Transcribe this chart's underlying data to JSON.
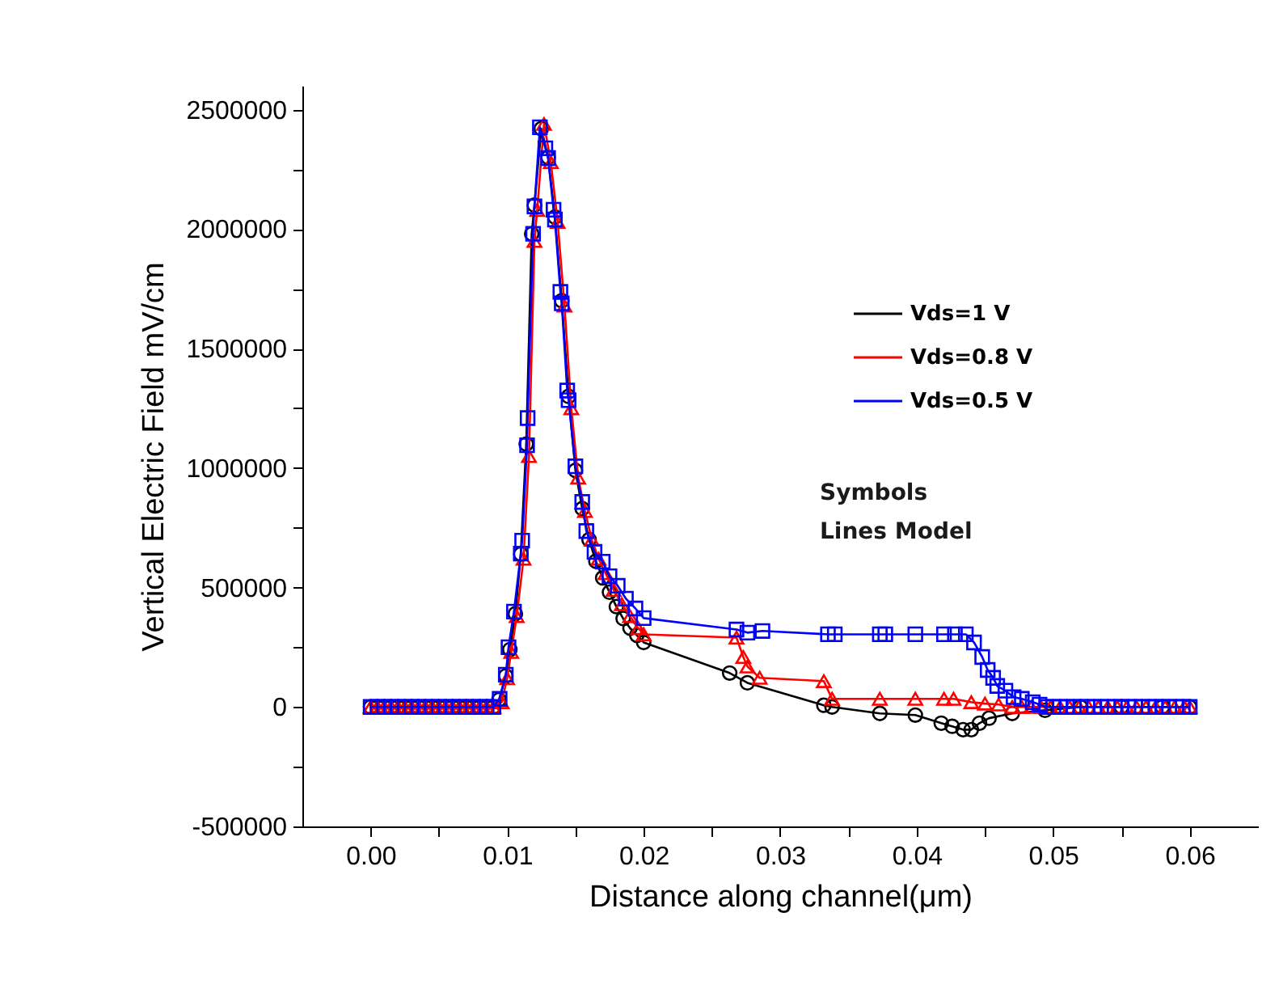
{
  "chart_data": {
    "type": "line",
    "xlabel": "Distance along channel(μm)",
    "ylabel": "Vertical Electric Field mV/cm",
    "xlim": [
      -0.005,
      0.065
    ],
    "xticks": [
      {
        "value": 0,
        "label": "0.00"
      },
      {
        "value": 0.005,
        "label": null
      },
      {
        "value": 0.01,
        "label": "0.01"
      },
      {
        "value": 0.015,
        "label": null
      },
      {
        "value": 0.02,
        "label": "0.02"
      },
      {
        "value": 0.025,
        "label": null
      },
      {
        "value": 0.03,
        "label": "0.03"
      },
      {
        "value": 0.035,
        "label": null
      },
      {
        "value": 0.04,
        "label": "0.04"
      },
      {
        "value": 0.045,
        "label": null
      },
      {
        "value": 0.05,
        "label": "0.05"
      },
      {
        "value": 0.055,
        "label": null
      },
      {
        "value": 0.06,
        "label": "0.06"
      }
    ],
    "ylim": [
      -500000,
      2600000
    ],
    "yticks": [
      -500000,
      {
        "value": -250000,
        "label": null
      },
      0,
      {
        "value": 250000,
        "label": null
      },
      500000,
      {
        "value": 750000,
        "label": null
      },
      1000000,
      {
        "value": 1250000,
        "label": null
      },
      1500000,
      {
        "value": 1750000,
        "label": null
      },
      2000000,
      {
        "value": 2250000,
        "label": null
      },
      2500000
    ],
    "grid": false,
    "legend": "top right",
    "line_style": "solid",
    "annotations": [
      "Symbols",
      "Lines Model"
    ],
    "series": [
      {
        "name": "Vds=1 V",
        "color": "#000000",
        "marker": "circle",
        "x": [
          0,
          0.0005,
          0.001,
          0.0015,
          0.002,
          0.0025,
          0.003,
          0.0035,
          0.004,
          0.0045,
          0.005,
          0.0055,
          0.006,
          0.0065,
          0.007,
          0.0075,
          0.008,
          0.0085,
          0.009,
          0.0094,
          0.0099,
          0.0102,
          0.0106,
          0.011,
          0.0114,
          0.0118,
          0.012,
          0.0125,
          0.013,
          0.0135,
          0.014,
          0.0145,
          0.015,
          0.0155,
          0.016,
          0.0165,
          0.017,
          0.0175,
          0.018,
          0.0185,
          0.019,
          0.0195,
          0.02,
          0.0263,
          0.0276,
          0.0332,
          0.0338,
          0.0373,
          0.0399,
          0.0418,
          0.0426,
          0.0434,
          0.044,
          0.0446,
          0.0453,
          0.047,
          0.0494,
          0.052,
          0.055,
          0.058,
          0.06
        ],
        "values": [
          0,
          0,
          0,
          0,
          0,
          0,
          0,
          0,
          0,
          0,
          0,
          0,
          0,
          0,
          0,
          0,
          0,
          0,
          0,
          30000,
          130000,
          240000,
          390000,
          640000,
          1100000,
          1980000,
          2100000,
          2420000,
          2300000,
          2050000,
          1700000,
          1300000,
          990000,
          830000,
          700000,
          610000,
          540000,
          480000,
          420000,
          370000,
          330000,
          300000,
          270000,
          142000,
          101000,
          7000,
          0,
          -27000,
          -34000,
          -68000,
          -81000,
          -95000,
          -95000,
          -68000,
          -47000,
          -27000,
          -14000,
          0,
          0,
          0,
          0
        ]
      },
      {
        "name": "Vds=0.8 V",
        "color": "#ff0000",
        "marker": "triangle",
        "x": [
          0,
          0.0005,
          0.001,
          0.0015,
          0.002,
          0.0025,
          0.003,
          0.0035,
          0.004,
          0.0045,
          0.005,
          0.0055,
          0.006,
          0.0065,
          0.007,
          0.0075,
          0.008,
          0.0085,
          0.009,
          0.0096,
          0.01,
          0.0103,
          0.0107,
          0.0112,
          0.0116,
          0.012,
          0.0122,
          0.0127,
          0.0132,
          0.0137,
          0.0142,
          0.0147,
          0.0152,
          0.0157,
          0.0162,
          0.0167,
          0.0172,
          0.0178,
          0.0184,
          0.019,
          0.0196,
          0.02,
          0.0268,
          0.0273,
          0.0276,
          0.0285,
          0.0332,
          0.0338,
          0.0373,
          0.0399,
          0.042,
          0.0427,
          0.044,
          0.045,
          0.046,
          0.047,
          0.0477,
          0.0484,
          0.0491,
          0.0498,
          0.0505,
          0.0512,
          0.0519,
          0.0526,
          0.0533,
          0.054,
          0.0547,
          0.0554,
          0.0561,
          0.0568,
          0.0575,
          0.0582,
          0.0589,
          0.0596,
          0.06
        ],
        "values": [
          0,
          0,
          0,
          0,
          0,
          0,
          0,
          0,
          0,
          0,
          0,
          0,
          0,
          0,
          0,
          0,
          0,
          0,
          0,
          20000,
          120000,
          230000,
          380000,
          620000,
          1050000,
          1950000,
          2080000,
          2440000,
          2280000,
          2030000,
          1680000,
          1250000,
          960000,
          820000,
          700000,
          620000,
          560000,
          490000,
          430000,
          380000,
          330000,
          304000,
          290000,
          209000,
          169000,
          122000,
          108000,
          34000,
          34000,
          34000,
          34000,
          34000,
          20000,
          14000,
          10000,
          0,
          0,
          0,
          0,
          0,
          0,
          0,
          0,
          0,
          0,
          0,
          0,
          0,
          0,
          0,
          0,
          0,
          0,
          0,
          0
        ]
      },
      {
        "name": "Vds=0.5 V",
        "color": "#0000ff",
        "marker": "square",
        "x": [
          0,
          0.0005,
          0.001,
          0.0015,
          0.002,
          0.0025,
          0.003,
          0.0035,
          0.004,
          0.0045,
          0.005,
          0.0055,
          0.006,
          0.0065,
          0.007,
          0.0075,
          0.008,
          0.0085,
          0.009,
          0.00945,
          0.0099,
          0.0101,
          0.0105,
          0.011,
          0.0111,
          0.01146,
          0.0115,
          0.0119,
          0.012,
          0.0124,
          0.0128,
          0.013,
          0.0134,
          0.0135,
          0.0139,
          0.014,
          0.0144,
          0.0145,
          0.015,
          0.0155,
          0.0158,
          0.0164,
          0.017,
          0.0175,
          0.0181,
          0.0187,
          0.0194,
          0.02,
          0.0268,
          0.0276,
          0.0287,
          0.0335,
          0.034,
          0.0373,
          0.0377,
          0.0399,
          0.042,
          0.0428,
          0.0436,
          0.0442,
          0.0448,
          0.0452,
          0.0456,
          0.0459,
          0.0465,
          0.0471,
          0.0477,
          0.0485,
          0.049,
          0.0495,
          0.05,
          0.0505,
          0.051,
          0.0515,
          0.052,
          0.0525,
          0.053,
          0.0535,
          0.054,
          0.0545,
          0.055,
          0.0555,
          0.056,
          0.0565,
          0.057,
          0.0575,
          0.058,
          0.0585,
          0.059,
          0.0595,
          0.06
        ],
        "values": [
          0,
          0,
          0,
          0,
          0,
          0,
          0,
          0,
          0,
          0,
          0,
          0,
          0,
          0,
          0,
          0,
          0,
          0,
          0,
          34000,
          135000,
          250000,
          399000,
          642000,
          696000,
          1095000,
          1209000,
          1980000,
          2095000,
          2426000,
          2338000,
          2297000,
          2081000,
          2040000,
          1737000,
          1689000,
          1324000,
          1284000,
          1007000,
          858000,
          736000,
          649000,
          608000,
          547000,
          507000,
          453000,
          412000,
          372000,
          324000,
          311000,
          318000,
          304000,
          304000,
          304000,
          304000,
          304000,
          304000,
          304000,
          304000,
          270000,
          209000,
          155000,
          122000,
          88000,
          68000,
          41000,
          34000,
          20000,
          10000,
          0,
          0,
          0,
          0,
          0,
          0,
          0,
          0,
          0,
          0,
          0,
          0,
          0,
          0,
          0,
          0,
          0,
          0,
          0,
          0,
          0,
          0
        ]
      }
    ]
  }
}
